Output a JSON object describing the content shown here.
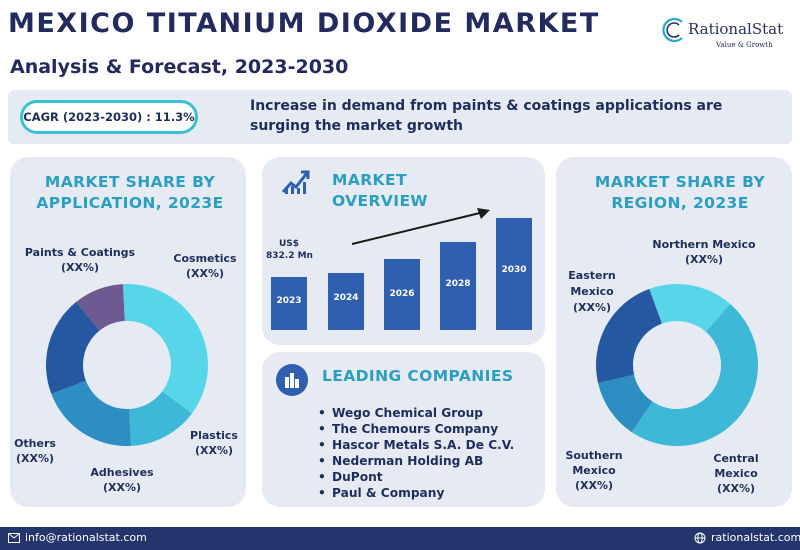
{
  "header": {
    "title": "MEXICO TITANIUM DIOXIDE MARKET",
    "subtitle": "Analysis & Forecast, 2023-2030"
  },
  "logo": {
    "name": "RationalStat",
    "tagline": "Value & Growth"
  },
  "banner": {
    "cagr": "CAGR (2023-2030) : 11.3%",
    "text": "Increase in demand from paints & coatings applications are surging the market growth"
  },
  "application_panel": {
    "heading": "MARKET SHARE BY APPLICATION, 2023E"
  },
  "overview_panel": {
    "heading": "MARKET OVERVIEW",
    "value_label_line1": "US$",
    "value_label_line2": "832.2 Mn"
  },
  "companies_panel": {
    "heading": "LEADING COMPANIES",
    "companies": [
      "Wego Chemical Group",
      "The Chemours Company",
      "Hascor Metals S.A. De C.V.",
      "Nederman Holding AB",
      "DuPont",
      "Paul & Company"
    ]
  },
  "region_panel": {
    "heading": "MARKET SHARE BY REGION, 2023E"
  },
  "footer": {
    "email": "info@rationalstat.com",
    "website": "rationalstat.com"
  },
  "colors": {
    "navy": "#222a5e",
    "teal_heading": "#2b9fc1",
    "bar_blue": "#2f5fae",
    "panel_bg": "#e6ebf3",
    "footer_bg": "#23356a"
  },
  "chart_data": [
    {
      "type": "pie",
      "style": "donut",
      "title": "MARKET SHARE BY APPLICATION, 2023E",
      "labels": [
        "Paints & Coatings",
        "Cosmetics",
        "Plastics",
        "Adhesives",
        "Others"
      ],
      "value_labels": [
        "(XX%)",
        "(XX%)",
        "(XX%)",
        "(XX%)",
        "(XX%)"
      ],
      "values": [
        36,
        14,
        20,
        20,
        10
      ],
      "colors": [
        "#56d6e8",
        "#3db8d6",
        "#2c8ec1",
        "#2658a2",
        "#6d5a93"
      ]
    },
    {
      "type": "bar",
      "title": "MARKET OVERVIEW",
      "categories": [
        "2023",
        "2024",
        "2026",
        "2028",
        "2030"
      ],
      "values": [
        832.2,
        894,
        1109,
        1376,
        1757
      ],
      "unit": "US$ Mn",
      "labeled_value": "US$ 832.2 Mn",
      "trend_arrow": true
    },
    {
      "type": "pie",
      "style": "donut",
      "title": "MARKET SHARE BY REGION, 2023E",
      "labels": [
        "Northern Mexico",
        "Central Mexico",
        "Southern Mexico",
        "Eastern Mexico"
      ],
      "value_labels": [
        "(XX%)",
        "(XX%)",
        "(XX%)",
        "(XX%)"
      ],
      "values": [
        17,
        48,
        12,
        23
      ],
      "colors": [
        "#56d6e8",
        "#3db8d6",
        "#2c8ec1",
        "#2658a2"
      ]
    }
  ]
}
